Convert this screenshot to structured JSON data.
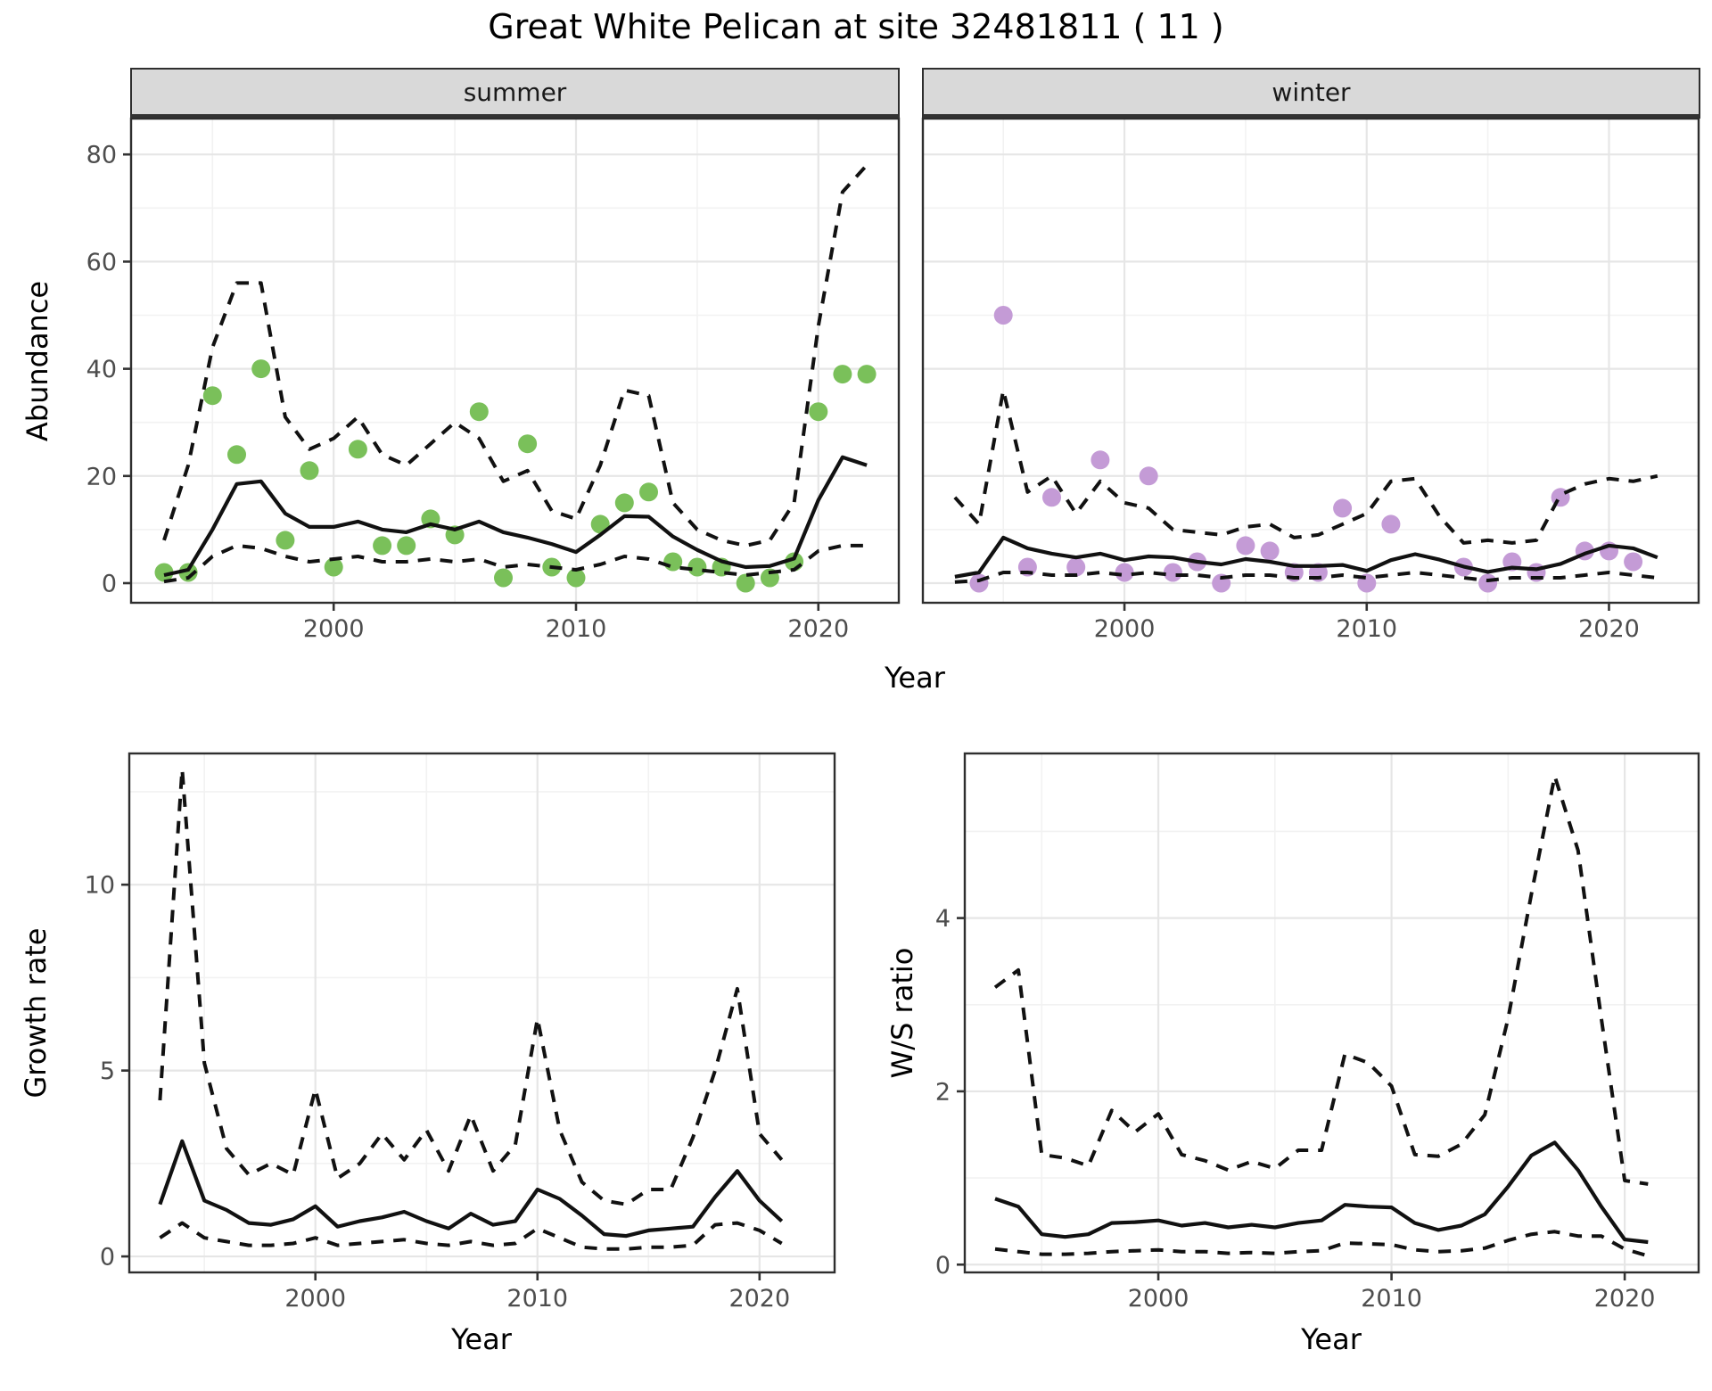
{
  "title": "Great White Pelican at site 32481811 ( 11 )",
  "labels": {
    "abundance": "Abundance",
    "growth_rate": "Growth rate",
    "ws_ratio": "W/S ratio",
    "year": "Year"
  },
  "colors": {
    "summer_point": "#7ac05a",
    "winter_point": "#c49bd6",
    "line": "#111111",
    "grid_major": "#e6e6e6",
    "grid_minor": "#f2f2f2",
    "panel_border": "#2e2e2e",
    "tick_text": "#4d4d4d",
    "tick_mark": "#333333",
    "strip_bg": "#d9d9d9"
  },
  "chart_data": [
    {
      "id": "abundance-summer",
      "type": "line",
      "facet_label": "summer",
      "xlabel": "Year",
      "ylabel": "Abundance",
      "x": [
        1993,
        1994,
        1995,
        1996,
        1997,
        1998,
        1999,
        2000,
        2001,
        2002,
        2003,
        2004,
        2005,
        2006,
        2007,
        2008,
        2009,
        2010,
        2011,
        2012,
        2013,
        2014,
        2015,
        2016,
        2017,
        2018,
        2019,
        2020,
        2021,
        2022
      ],
      "xlim": [
        1991.64,
        2023.32
      ],
      "ylim": [
        -3.66,
        86.69
      ],
      "yticks": {
        "values": [
          0,
          20,
          40,
          60,
          80
        ],
        "labels": [
          "0",
          "20",
          "40",
          "60",
          "80"
        ]
      },
      "yminor": [
        10,
        30,
        50,
        70
      ],
      "xticks": {
        "values": [
          2000,
          2010,
          2020
        ],
        "labels": [
          "2000",
          "2010",
          "2020"
        ]
      },
      "xminor": [
        1995,
        2005,
        2015
      ],
      "show_y_labels": true,
      "series": [
        {
          "name": "observed-count",
          "type": "points",
          "color_key": "summer_point",
          "values": [
            2,
            2,
            35,
            24,
            40,
            8,
            21,
            3,
            25,
            7,
            7,
            12,
            9,
            32,
            1,
            26,
            3,
            1,
            11,
            15,
            17,
            4,
            3,
            3,
            0,
            1,
            4,
            32,
            39,
            39
          ]
        },
        {
          "name": "posterior-mean",
          "type": "line",
          "style": "solid",
          "values": [
            1.5,
            2.5,
            10,
            18.5,
            19,
            13,
            10.5,
            10.5,
            11.5,
            10,
            9.5,
            11,
            10,
            11.5,
            9.5,
            8.5,
            7.3,
            5.8,
            9,
            12.5,
            12.4,
            8.7,
            6.2,
            4.1,
            3,
            3.2,
            4.6,
            15.5,
            23.5,
            22
          ]
        },
        {
          "name": "upper-95ci",
          "type": "line",
          "style": "dashed",
          "values": [
            8,
            22,
            44,
            56,
            56,
            31,
            25,
            27,
            31,
            24,
            22,
            26,
            30,
            27,
            19,
            21,
            13.5,
            12,
            22,
            36,
            35,
            15,
            10,
            8,
            7,
            8,
            15,
            48,
            73,
            78
          ]
        },
        {
          "name": "lower-95ci",
          "type": "line",
          "style": "dashed",
          "values": [
            0.3,
            1,
            5,
            7,
            6.5,
            5,
            4,
            4.5,
            5,
            4,
            4,
            4.5,
            4,
            4.5,
            3,
            3.5,
            3,
            2.5,
            3.5,
            5,
            4.5,
            3,
            2.5,
            2,
            1.5,
            2,
            2.5,
            6,
            7,
            7
          ]
        }
      ]
    },
    {
      "id": "abundance-winter",
      "type": "line",
      "facet_label": "winter",
      "xlabel": "Year",
      "ylabel": "Abundance",
      "x": [
        1993,
        1994,
        1995,
        1996,
        1997,
        1998,
        1999,
        2000,
        2001,
        2002,
        2003,
        2004,
        2005,
        2006,
        2007,
        2008,
        2009,
        2010,
        2011,
        2012,
        2013,
        2014,
        2015,
        2016,
        2017,
        2018,
        2019,
        2020,
        2021,
        2022
      ],
      "xlim": [
        1991.68,
        2023.7
      ],
      "ylim": [
        -3.66,
        86.69
      ],
      "yticks": {
        "values": [
          0,
          20,
          40,
          60,
          80
        ],
        "labels": [
          "0",
          "20",
          "40",
          "60",
          "80"
        ]
      },
      "yminor": [
        10,
        30,
        50,
        70
      ],
      "xticks": {
        "values": [
          2000,
          2010,
          2020
        ],
        "labels": [
          "2000",
          "2010",
          "2020"
        ]
      },
      "xminor": [
        1995,
        2005,
        2015
      ],
      "show_y_labels": false,
      "series": [
        {
          "name": "observed-count",
          "type": "points",
          "color_key": "winter_point",
          "values": [
            null,
            0,
            50,
            3,
            16,
            3,
            23,
            2,
            20,
            2,
            4,
            0,
            7,
            6,
            2,
            2,
            14,
            0,
            11,
            null,
            null,
            3,
            0,
            4,
            2,
            16,
            6,
            6,
            4,
            null
          ]
        },
        {
          "name": "posterior-mean",
          "type": "line",
          "style": "solid",
          "values": [
            1.2,
            2,
            8.5,
            6.5,
            5.5,
            4.8,
            5.5,
            4.3,
            5,
            4.8,
            4,
            3.5,
            4.5,
            4,
            3.2,
            3.2,
            3.4,
            2.3,
            4.3,
            5.4,
            4.4,
            3.1,
            2.1,
            2.9,
            2.6,
            3.6,
            5.5,
            7,
            6.5,
            4.8
          ]
        },
        {
          "name": "upper-95ci",
          "type": "line",
          "style": "dashed",
          "values": [
            16,
            11,
            36,
            17,
            20,
            13,
            19,
            15,
            14,
            10,
            9.5,
            9,
            10.5,
            11,
            8.5,
            9,
            11,
            13,
            19,
            19.5,
            12.5,
            7.5,
            8,
            7.5,
            8,
            16.5,
            18.5,
            19.5,
            19,
            20
          ]
        },
        {
          "name": "lower-95ci",
          "type": "line",
          "style": "dashed",
          "values": [
            0.2,
            0.5,
            2,
            2,
            1.5,
            1.5,
            2,
            1.5,
            2,
            1.5,
            1.5,
            1,
            1.5,
            1.5,
            1,
            1,
            1.5,
            1,
            1.5,
            2,
            1.5,
            1,
            0.5,
            1,
            1,
            1,
            1.5,
            2,
            1.5,
            1
          ]
        }
      ]
    },
    {
      "id": "growth-rate",
      "type": "line",
      "facet_label": "",
      "xlabel": "Year",
      "ylabel": "Growth rate",
      "x": [
        1993,
        1994,
        1995,
        1996,
        1997,
        1998,
        1999,
        2000,
        2001,
        2002,
        2003,
        2004,
        2005,
        2006,
        2007,
        2008,
        2009,
        2010,
        2011,
        2012,
        2013,
        2014,
        2015,
        2016,
        2017,
        2018,
        2019,
        2020,
        2021
      ],
      "xlim": [
        1991.62,
        2023.38
      ],
      "ylim": [
        -0.43,
        13.53
      ],
      "yticks": {
        "values": [
          0,
          5,
          10
        ],
        "labels": [
          "0",
          "5",
          "10"
        ]
      },
      "yminor": [
        2.5,
        7.5,
        12.5
      ],
      "xticks": {
        "values": [
          2000,
          2010,
          2020
        ],
        "labels": [
          "2000",
          "2010",
          "2020"
        ]
      },
      "xminor": [
        1995,
        2005,
        2015
      ],
      "show_y_labels": true,
      "series": [
        {
          "name": "posterior-mean",
          "type": "line",
          "style": "solid",
          "values": [
            1.4,
            3.1,
            1.5,
            1.25,
            0.9,
            0.85,
            1.0,
            1.35,
            0.8,
            0.95,
            1.05,
            1.2,
            0.95,
            0.75,
            1.15,
            0.85,
            0.95,
            1.8,
            1.55,
            1.1,
            0.6,
            0.55,
            0.7,
            0.75,
            0.8,
            1.6,
            2.3,
            1.5,
            0.95
          ]
        },
        {
          "name": "upper-95ci",
          "type": "line",
          "style": "dashed",
          "values": [
            4.2,
            13.1,
            5.2,
            2.9,
            2.2,
            2.5,
            2.2,
            4.5,
            2.1,
            2.5,
            3.3,
            2.6,
            3.4,
            2.3,
            3.8,
            2.3,
            3.0,
            6.4,
            3.4,
            2.0,
            1.5,
            1.4,
            1.8,
            1.8,
            3.2,
            5.0,
            7.2,
            3.3,
            2.6
          ]
        },
        {
          "name": "lower-95ci",
          "type": "line",
          "style": "dashed",
          "values": [
            0.5,
            0.9,
            0.5,
            0.4,
            0.3,
            0.3,
            0.35,
            0.5,
            0.3,
            0.35,
            0.4,
            0.45,
            0.35,
            0.3,
            0.4,
            0.3,
            0.35,
            0.75,
            0.5,
            0.25,
            0.2,
            0.2,
            0.25,
            0.25,
            0.3,
            0.85,
            0.9,
            0.7,
            0.35
          ]
        }
      ]
    },
    {
      "id": "ws-ratio",
      "type": "line",
      "facet_label": "",
      "xlabel": "Year",
      "ylabel": "W/S ratio",
      "x": [
        1993,
        1994,
        1995,
        1996,
        1997,
        1998,
        1999,
        2000,
        2001,
        2002,
        2003,
        2004,
        2005,
        2006,
        2007,
        2008,
        2009,
        2010,
        2011,
        2012,
        2013,
        2014,
        2015,
        2016,
        2017,
        2018,
        2019,
        2020,
        2021
      ],
      "xlim": [
        1991.7,
        2023.17
      ],
      "ylim": [
        -0.09,
        5.9
      ],
      "yticks": {
        "values": [
          0,
          2,
          4
        ],
        "labels": [
          "0",
          "2",
          "4"
        ]
      },
      "yminor": [
        1,
        3,
        5
      ],
      "xticks": {
        "values": [
          2000,
          2010,
          2020
        ],
        "labels": [
          "2000",
          "2010",
          "2020"
        ]
      },
      "xminor": [
        1995,
        2005,
        2015
      ],
      "show_y_labels": true,
      "series": [
        {
          "name": "posterior-mean",
          "type": "line",
          "style": "solid",
          "values": [
            0.76,
            0.67,
            0.35,
            0.32,
            0.35,
            0.48,
            0.49,
            0.51,
            0.45,
            0.48,
            0.43,
            0.46,
            0.43,
            0.48,
            0.51,
            0.69,
            0.67,
            0.66,
            0.48,
            0.4,
            0.45,
            0.58,
            0.9,
            1.26,
            1.41,
            1.09,
            0.67,
            0.29,
            0.26
          ]
        },
        {
          "name": "upper-95ci",
          "type": "line",
          "style": "dashed",
          "values": [
            3.2,
            3.4,
            1.27,
            1.23,
            1.14,
            1.78,
            1.53,
            1.74,
            1.27,
            1.2,
            1.09,
            1.19,
            1.11,
            1.32,
            1.32,
            2.43,
            2.33,
            2.06,
            1.27,
            1.25,
            1.39,
            1.73,
            2.84,
            4.28,
            5.64,
            4.78,
            2.84,
            0.97,
            0.93
          ]
        },
        {
          "name": "lower-95ci",
          "type": "line",
          "style": "dashed",
          "values": [
            0.18,
            0.15,
            0.12,
            0.12,
            0.13,
            0.15,
            0.16,
            0.17,
            0.15,
            0.15,
            0.13,
            0.14,
            0.13,
            0.15,
            0.16,
            0.25,
            0.24,
            0.23,
            0.17,
            0.15,
            0.16,
            0.19,
            0.28,
            0.35,
            0.38,
            0.33,
            0.33,
            0.18,
            0.1
          ]
        }
      ]
    }
  ]
}
